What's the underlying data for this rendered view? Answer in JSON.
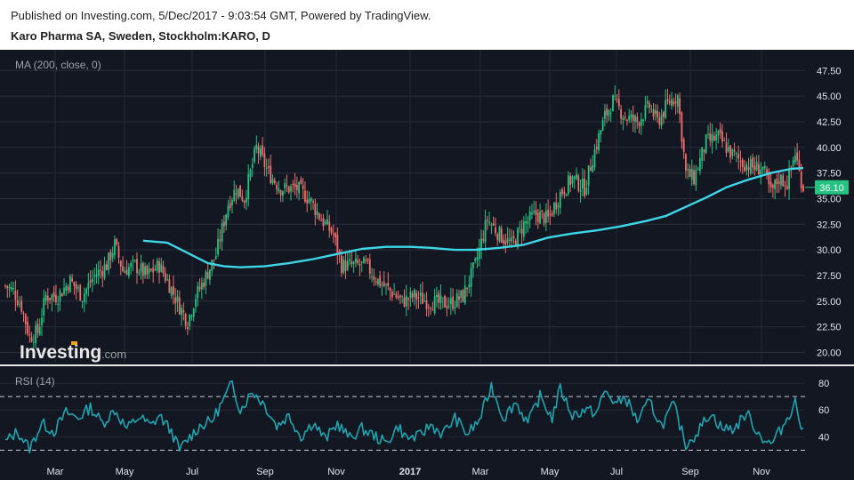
{
  "header": {
    "published": "Published on Investing.com, 5/Dec/2017 - 9:03:54 GMT, Powered by TradingView.",
    "symbol": "Karo Pharma SA, Sweden, Stockholm:KARO, D"
  },
  "watermark": {
    "text": "Investing",
    "suffix": ".com"
  },
  "colors": {
    "background": "#131722",
    "up": "#26c281",
    "down": "#ef6f6c",
    "ma": "#3fd6e8",
    "rsi": "#1fa5b0",
    "price_badge": "#26c281"
  },
  "chart_data": [
    {
      "type": "candlestick",
      "indicator_label": "MA (200, close, 0)",
      "ylim": [
        19.0,
        49.0
      ],
      "y_ticks": [
        "47.50",
        "45.00",
        "42.50",
        "40.00",
        "37.50",
        "35.00",
        "32.50",
        "30.00",
        "27.50",
        "25.00",
        "22.50",
        "20.00"
      ],
      "x_ticks": [
        "Mar",
        "May",
        "Jul",
        "Sep",
        "Nov",
        "2017",
        "Mar",
        "May",
        "Jul",
        "Sep",
        "Nov"
      ],
      "last_price": "36.10",
      "price_path": [
        [
          0,
          26.5
        ],
        [
          4,
          26.0
        ],
        [
          8,
          24.5
        ],
        [
          12,
          21.5
        ],
        [
          16,
          22.0
        ],
        [
          20,
          25.5
        ],
        [
          26,
          25.5
        ],
        [
          32,
          27.0
        ],
        [
          38,
          25.5
        ],
        [
          44,
          27.5
        ],
        [
          50,
          28.5
        ],
        [
          54,
          30.5
        ],
        [
          58,
          28.0
        ],
        [
          64,
          28.5
        ],
        [
          70,
          27.5
        ],
        [
          76,
          28.5
        ],
        [
          80,
          27.0
        ],
        [
          86,
          24.5
        ],
        [
          90,
          23.0
        ],
        [
          94,
          25.5
        ],
        [
          98,
          27.0
        ],
        [
          104,
          29.5
        ],
        [
          110,
          34.5
        ],
        [
          114,
          36.0
        ],
        [
          118,
          35.0
        ],
        [
          124,
          40.0
        ],
        [
          130,
          37.5
        ],
        [
          136,
          36.0
        ],
        [
          144,
          36.0
        ],
        [
          150,
          35.0
        ],
        [
          156,
          33.0
        ],
        [
          162,
          31.5
        ],
        [
          166,
          28.5
        ],
        [
          172,
          28.5
        ],
        [
          178,
          28.5
        ],
        [
          184,
          27.0
        ],
        [
          190,
          26.0
        ],
        [
          196,
          25.0
        ],
        [
          202,
          25.5
        ],
        [
          208,
          25.0
        ],
        [
          214,
          24.8
        ],
        [
          220,
          24.8
        ],
        [
          226,
          25.5
        ],
        [
          232,
          28.5
        ],
        [
          238,
          33.0
        ],
        [
          244,
          31.5
        ],
        [
          250,
          30.5
        ],
        [
          256,
          32.5
        ],
        [
          262,
          33.5
        ],
        [
          268,
          33.0
        ],
        [
          274,
          35.5
        ],
        [
          280,
          37.0
        ],
        [
          286,
          36.0
        ],
        [
          290,
          39.0
        ],
        [
          296,
          43.0
        ],
        [
          300,
          44.5
        ],
        [
          306,
          43.0
        ],
        [
          312,
          42.5
        ],
        [
          318,
          44.0
        ],
        [
          322,
          42.5
        ],
        [
          328,
          44.5
        ],
        [
          332,
          45.0
        ],
        [
          336,
          37.5
        ],
        [
          340,
          37.0
        ],
        [
          346,
          40.5
        ],
        [
          352,
          41.0
        ],
        [
          358,
          39.5
        ],
        [
          364,
          38.5
        ],
        [
          370,
          38.0
        ],
        [
          374,
          38.0
        ],
        [
          378,
          35.5
        ],
        [
          382,
          37.0
        ],
        [
          386,
          36.5
        ],
        [
          390,
          39.5
        ],
        [
          392,
          37.5
        ],
        [
          394,
          36.1
        ]
      ],
      "moving_average": [
        [
          68,
          30.9
        ],
        [
          80,
          30.7
        ],
        [
          90,
          29.7
        ],
        [
          100,
          28.7
        ],
        [
          108,
          28.4
        ],
        [
          116,
          28.3
        ],
        [
          128,
          28.4
        ],
        [
          140,
          28.7
        ],
        [
          152,
          29.1
        ],
        [
          164,
          29.6
        ],
        [
          176,
          30.1
        ],
        [
          188,
          30.3
        ],
        [
          200,
          30.3
        ],
        [
          210,
          30.2
        ],
        [
          222,
          30.0
        ],
        [
          232,
          30.0
        ],
        [
          244,
          30.2
        ],
        [
          256,
          30.5
        ],
        [
          268,
          31.2
        ],
        [
          280,
          31.6
        ],
        [
          292,
          31.9
        ],
        [
          304,
          32.3
        ],
        [
          316,
          32.8
        ],
        [
          326,
          33.3
        ],
        [
          336,
          34.2
        ],
        [
          346,
          35.1
        ],
        [
          356,
          36.1
        ],
        [
          366,
          36.8
        ],
        [
          378,
          37.5
        ],
        [
          388,
          37.9
        ],
        [
          394,
          38.0
        ]
      ]
    },
    {
      "type": "line",
      "indicator_label": "RSI (14)",
      "ylim": [
        25,
        90
      ],
      "y_ticks": [
        "80",
        "60",
        "40"
      ],
      "guide_levels": [
        70,
        30
      ],
      "values": [
        [
          0,
          36
        ],
        [
          6,
          44
        ],
        [
          12,
          31
        ],
        [
          18,
          50
        ],
        [
          24,
          44
        ],
        [
          30,
          58
        ],
        [
          36,
          54
        ],
        [
          42,
          62
        ],
        [
          48,
          50
        ],
        [
          54,
          60
        ],
        [
          60,
          46
        ],
        [
          66,
          55
        ],
        [
          72,
          48
        ],
        [
          76,
          56
        ],
        [
          82,
          44
        ],
        [
          86,
          30
        ],
        [
          90,
          38
        ],
        [
          96,
          48
        ],
        [
          102,
          52
        ],
        [
          108,
          68
        ],
        [
          112,
          80
        ],
        [
          116,
          60
        ],
        [
          122,
          74
        ],
        [
          128,
          64
        ],
        [
          134,
          48
        ],
        [
          140,
          56
        ],
        [
          146,
          40
        ],
        [
          152,
          51
        ],
        [
          158,
          38
        ],
        [
          164,
          50
        ],
        [
          170,
          39
        ],
        [
          176,
          46
        ],
        [
          182,
          41
        ],
        [
          188,
          35
        ],
        [
          194,
          48
        ],
        [
          198,
          39
        ],
        [
          204,
          40
        ],
        [
          210,
          49
        ],
        [
          216,
          42
        ],
        [
          222,
          54
        ],
        [
          228,
          42
        ],
        [
          234,
          52
        ],
        [
          240,
          78
        ],
        [
          246,
          54
        ],
        [
          252,
          66
        ],
        [
          258,
          50
        ],
        [
          264,
          70
        ],
        [
          270,
          54
        ],
        [
          274,
          76
        ],
        [
          280,
          56
        ],
        [
          286,
          60
        ],
        [
          292,
          58
        ],
        [
          296,
          74
        ],
        [
          302,
          64
        ],
        [
          306,
          70
        ],
        [
          312,
          52
        ],
        [
          318,
          66
        ],
        [
          324,
          48
        ],
        [
          330,
          64
        ],
        [
          336,
          34
        ],
        [
          342,
          44
        ],
        [
          348,
          58
        ],
        [
          354,
          46
        ],
        [
          360,
          46
        ],
        [
          366,
          58
        ],
        [
          372,
          42
        ],
        [
          378,
          34
        ],
        [
          384,
          48
        ],
        [
          390,
          66
        ],
        [
          394,
          42
        ]
      ]
    }
  ]
}
